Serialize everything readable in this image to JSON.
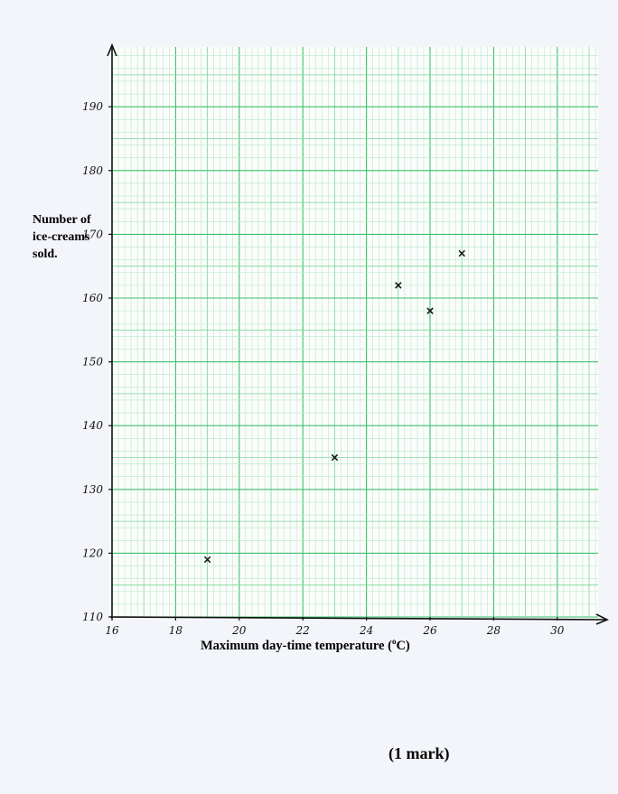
{
  "chart_data": {
    "type": "scatter",
    "title": "",
    "ylabel_lines": [
      "Number of",
      "ice-creams",
      "sold."
    ],
    "xlabel_prefix": "Maximum day-time temperature (",
    "xlabel_sup": "o",
    "xlabel_suffix": "C)",
    "xlim": [
      16,
      31.5
    ],
    "ylim": [
      110,
      198
    ],
    "x_ticks": [
      16,
      18,
      20,
      22,
      24,
      26,
      28,
      30
    ],
    "y_ticks": [
      110,
      120,
      130,
      140,
      150,
      160,
      170,
      180,
      190
    ],
    "grid": true,
    "points": [
      {
        "x": 19,
        "y": 119
      },
      {
        "x": 23,
        "y": 135
      },
      {
        "x": 25,
        "y": 162
      },
      {
        "x": 26,
        "y": 158
      },
      {
        "x": 27,
        "y": 167
      }
    ],
    "marker": "x",
    "colors": {
      "grid_minor": "#b9e6c8",
      "grid_medium": "#7fd39c",
      "grid_major": "#3fbf6d",
      "axis": "#111111",
      "marker": "#111111"
    }
  },
  "footer": {
    "marks_label": "(1 mark)"
  }
}
